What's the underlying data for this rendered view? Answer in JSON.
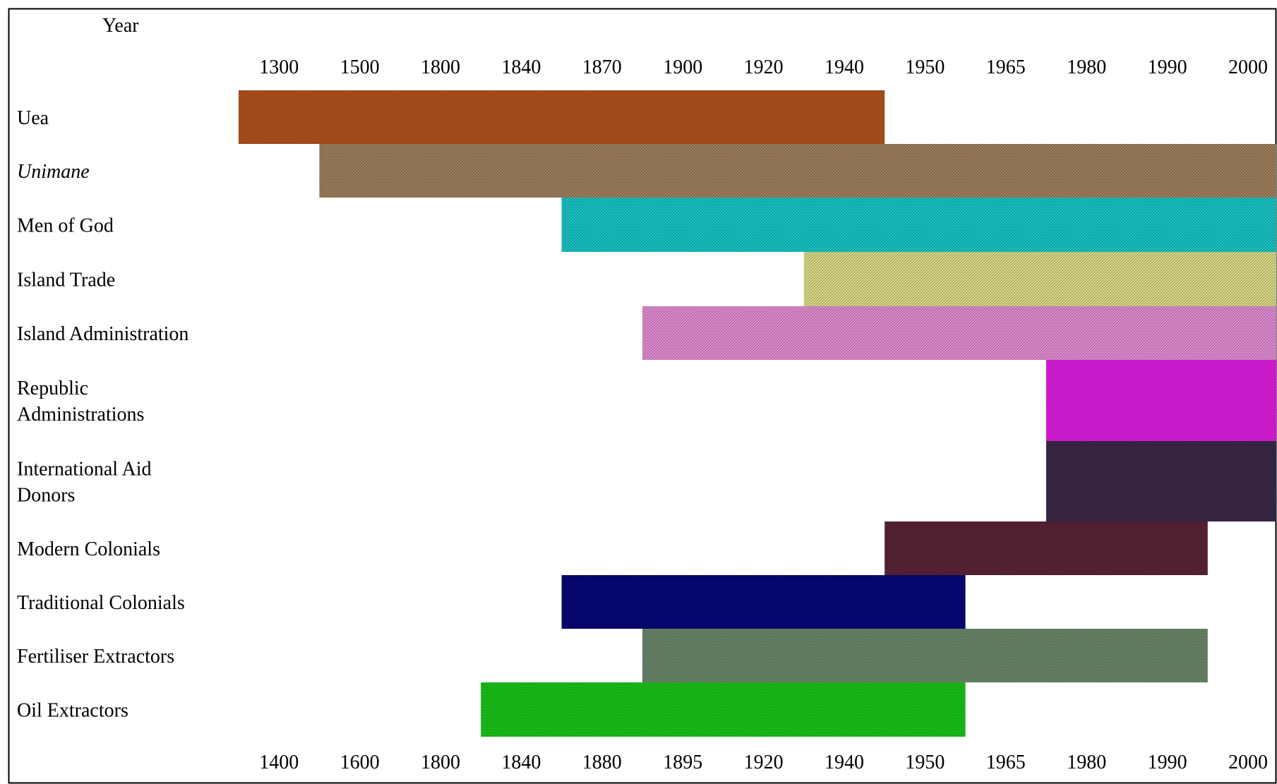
{
  "chart_data": {
    "type": "timeline",
    "corner_label": "Year",
    "top_ticks": [
      "1300",
      "1500",
      "1800",
      "1840",
      "1870",
      "1900",
      "1920",
      "1940",
      "1950",
      "1965",
      "1980",
      "1990",
      "2000"
    ],
    "bottom_ticks": [
      "1400",
      "1600",
      "1800",
      "1840",
      "1880",
      "1895",
      "1920",
      "1940",
      "1950",
      "1965",
      "1980",
      "1990",
      "2000"
    ],
    "rows": [
      {
        "label": [
          "Uea"
        ],
        "italic": false,
        "start": "1300",
        "end": "1940",
        "color": "#b5541c"
      },
      {
        "label": [
          "Unimane"
        ],
        "italic": true,
        "start": "1500",
        "end": "2000",
        "color": "#a2825e"
      },
      {
        "label": [
          "Men of God"
        ],
        "italic": false,
        "start": "1870",
        "end": "2000",
        "color": "#19c9c9"
      },
      {
        "label": [
          "Island Trade"
        ],
        "italic": false,
        "start": "1940",
        "end": "2000",
        "color": "#dede8a"
      },
      {
        "label": [
          "Island Administration"
        ],
        "italic": false,
        "start": "1895",
        "end": "2000",
        "color": "#e58ed6"
      },
      {
        "label": [
          "Republic",
          "Administrations"
        ],
        "italic": false,
        "start": "1980",
        "end": "2000",
        "color": "#e21ee2"
      },
      {
        "label": [
          "International Aid",
          "Donors"
        ],
        "italic": false,
        "start": "1980",
        "end": "2000",
        "color": "#3d2a4a"
      },
      {
        "label": [
          "Modern Colonials"
        ],
        "italic": false,
        "start": "1950",
        "end": "1990",
        "color": "#5c2438"
      },
      {
        "label": [
          "Traditional Colonials"
        ],
        "italic": false,
        "start": "1870",
        "end": "1950",
        "color": "#06067a"
      },
      {
        "label": [
          "Fertiliser Extractors"
        ],
        "italic": false,
        "start": "1895",
        "end": "1990",
        "color": "#6e8a6e"
      },
      {
        "label": [
          "Oil Extractors"
        ],
        "italic": false,
        "start": "1840",
        "end": "1950",
        "color": "#1ac81a"
      }
    ]
  }
}
